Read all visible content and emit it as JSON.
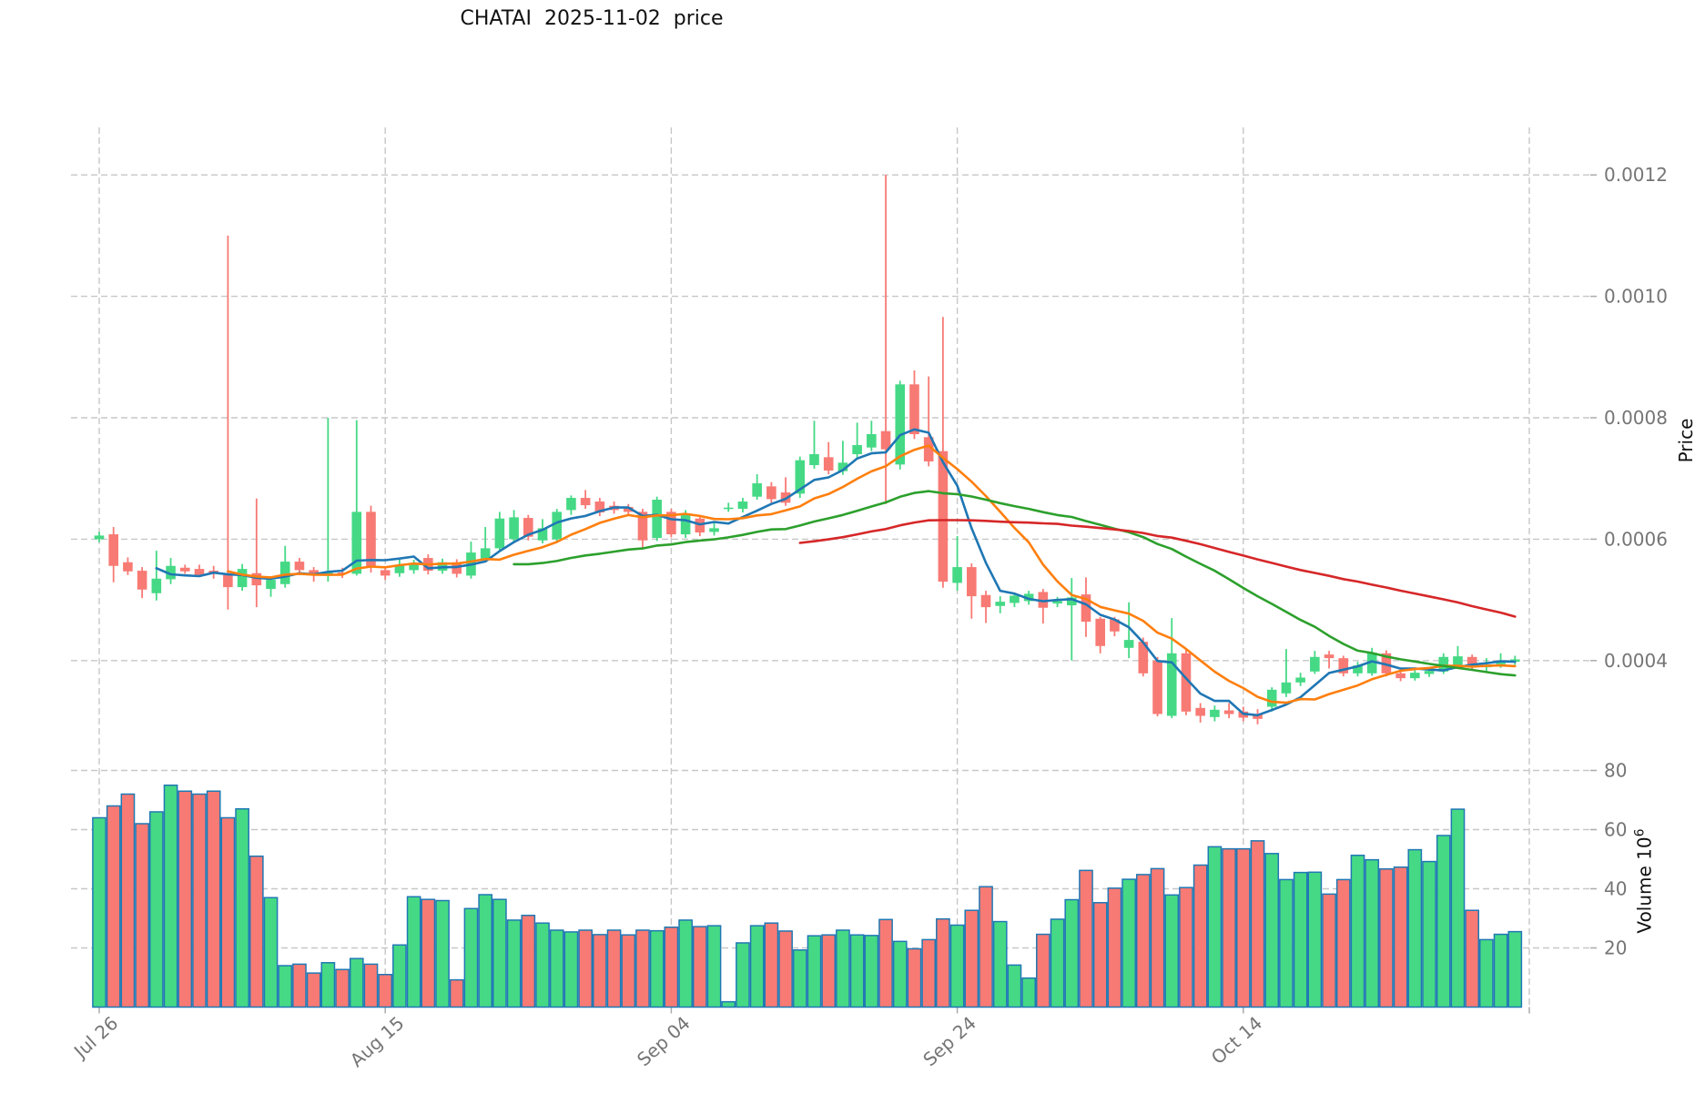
{
  "title": "CHATAI  2025-11-02  price",
  "price_axis": {
    "label": "Price",
    "ticks": [
      "0.0012",
      "0.0010",
      "0.0008",
      "0.0006",
      "0.0004"
    ],
    "tick_values": [
      0.0012,
      0.001,
      0.0008,
      0.0006,
      0.0004
    ]
  },
  "volume_axis": {
    "label": "Volume  10",
    "exponent": "6",
    "ticks": [
      "80",
      "60",
      "40",
      "20"
    ],
    "tick_values": [
      80,
      60,
      40,
      20
    ]
  },
  "x_axis": {
    "tick_labels": [
      "Jul 26",
      "Aug 15",
      "Sep 04",
      "Sep 24",
      "Oct 14"
    ],
    "tick_indices": [
      0,
      20,
      40,
      60,
      80
    ],
    "unlabeled_gridline_index": 100
  },
  "chart_data": {
    "type": "candlestick+volume",
    "title": "CHATAI  2025-11-02  price",
    "xlabel": "",
    "ylabel_price": "Price",
    "ylabel_volume": "Volume 10^6",
    "price_ylim": [
      0.00028,
      0.00128
    ],
    "volume_ylim": [
      0,
      90
    ],
    "grid": true,
    "x_tick_labels": [
      "Jul 26",
      "Aug 15",
      "Sep 04",
      "Sep 24",
      "Oct 14"
    ],
    "x_tick_indices": [
      0,
      20,
      40,
      60,
      80
    ],
    "moving_averages": {
      "windows": [
        5,
        10,
        30,
        50
      ],
      "colors": [
        "#1f77b4",
        "#ff7f0e",
        "#2ca02c",
        "#d62728"
      ]
    },
    "colors": {
      "up": "#45d985",
      "down": "#f87a74",
      "volume_edge": "#2078b4",
      "grid": "#c7c7c7",
      "tick_text": "#757575"
    },
    "columns": [
      "open",
      "high",
      "low",
      "close",
      "volume_millions"
    ],
    "candles": [
      [
        0.0006,
        0.000612,
        0.000595,
        0.000606,
        64
      ],
      [
        0.000608,
        0.00062,
        0.000529,
        0.000556,
        68
      ],
      [
        0.000562,
        0.00057,
        0.000541,
        0.000547,
        72
      ],
      [
        0.000548,
        0.000554,
        0.000503,
        0.000517,
        62
      ],
      [
        0.000511,
        0.000581,
        0.000499,
        0.000535,
        66
      ],
      [
        0.000534,
        0.000569,
        0.000526,
        0.000556,
        75
      ],
      [
        0.000553,
        0.000558,
        0.000543,
        0.000547,
        73
      ],
      [
        0.000551,
        0.000558,
        0.000538,
        0.000541,
        72
      ],
      [
        0.000548,
        0.000556,
        0.000535,
        0.000545,
        73
      ],
      [
        0.000541,
        0.0011,
        0.000484,
        0.000521,
        64
      ],
      [
        0.000521,
        0.000559,
        0.000515,
        0.000551,
        67
      ],
      [
        0.000544,
        0.000667,
        0.000488,
        0.000524,
        51
      ],
      [
        0.000518,
        0.000538,
        0.000505,
        0.000533,
        37
      ],
      [
        0.000526,
        0.000589,
        0.00052,
        0.000563,
        14
      ],
      [
        0.000563,
        0.000569,
        0.000541,
        0.000549,
        14.5
      ],
      [
        0.000549,
        0.000554,
        0.00053,
        0.000541,
        11.5
      ],
      [
        0.000543,
        0.0008,
        0.00053,
        0.000545,
        15
      ],
      [
        0.000545,
        0.000553,
        0.000536,
        0.000543,
        12.7
      ],
      [
        0.000543,
        0.000796,
        0.00054,
        0.000645,
        16.4
      ],
      [
        0.000645,
        0.000655,
        0.000545,
        0.000554,
        14.5
      ],
      [
        0.000549,
        0.000554,
        0.000533,
        0.00054,
        11
      ],
      [
        0.000544,
        0.000567,
        0.000538,
        0.000558,
        21
      ],
      [
        0.000549,
        0.000566,
        0.000543,
        0.00056,
        37.3
      ],
      [
        0.000569,
        0.000575,
        0.000542,
        0.000548,
        36.4
      ],
      [
        0.000548,
        0.000568,
        0.000543,
        0.000562,
        36
      ],
      [
        0.000562,
        0.000567,
        0.000537,
        0.000543,
        9.2
      ],
      [
        0.00054,
        0.000596,
        0.000535,
        0.000578,
        33.3
      ],
      [
        0.000568,
        0.00062,
        0.000562,
        0.000585,
        38
      ],
      [
        0.000585,
        0.000645,
        0.00058,
        0.000634,
        36.4
      ],
      [
        0.0006,
        0.000648,
        0.000594,
        0.000636,
        29.4
      ],
      [
        0.000635,
        0.00064,
        0.000598,
        0.000604,
        31
      ],
      [
        0.000598,
        0.000633,
        0.000593,
        0.000618,
        28.4
      ],
      [
        0.0006,
        0.00065,
        0.000595,
        0.000645,
        26
      ],
      [
        0.000648,
        0.000672,
        0.00064,
        0.000668,
        25.4
      ],
      [
        0.000668,
        0.000681,
        0.00065,
        0.000656,
        26
      ],
      [
        0.000662,
        0.000668,
        0.000638,
        0.000644,
        24.5
      ],
      [
        0.000655,
        0.000662,
        0.000642,
        0.000648,
        26
      ],
      [
        0.000653,
        0.000658,
        0.00064,
        0.000645,
        24.4
      ],
      [
        0.000645,
        0.00065,
        0.000585,
        0.000598,
        26
      ],
      [
        0.000602,
        0.00067,
        0.000597,
        0.000665,
        25.8
      ],
      [
        0.000645,
        0.00065,
        0.000603,
        0.000608,
        27
      ],
      [
        0.000608,
        0.000648,
        0.000602,
        0.00064,
        29.4
      ],
      [
        0.000634,
        0.00064,
        0.000605,
        0.000611,
        27.2
      ],
      [
        0.000612,
        0.000628,
        0.000606,
        0.000618,
        27.5
      ],
      [
        0.00065,
        0.00066,
        0.000645,
        0.000652,
        1.8
      ],
      [
        0.00065,
        0.000668,
        0.000644,
        0.000662,
        21.7
      ],
      [
        0.00067,
        0.000707,
        0.000665,
        0.000692,
        27.5
      ],
      [
        0.000687,
        0.000694,
        0.00066,
        0.000666,
        28.4
      ],
      [
        0.000677,
        0.000702,
        0.000655,
        0.00066,
        25.7
      ],
      [
        0.000675,
        0.000736,
        0.000668,
        0.00073,
        19.3
      ],
      [
        0.000722,
        0.000795,
        0.000716,
        0.00074,
        24.1
      ],
      [
        0.000735,
        0.00076,
        0.000707,
        0.000713,
        24.4
      ],
      [
        0.000712,
        0.000762,
        0.000706,
        0.000726,
        26
      ],
      [
        0.00074,
        0.000792,
        0.000734,
        0.000755,
        24.4
      ],
      [
        0.000751,
        0.000795,
        0.000745,
        0.000773,
        24.2
      ],
      [
        0.000778,
        0.0012,
        0.000658,
        0.000748,
        29.6
      ],
      [
        0.000723,
        0.000861,
        0.000715,
        0.000855,
        22.2
      ],
      [
        0.000855,
        0.000878,
        0.000765,
        0.000773,
        19.7
      ],
      [
        0.000768,
        0.000868,
        0.00072,
        0.000728,
        22.8
      ],
      [
        0.000745,
        0.000966,
        0.00052,
        0.00053,
        29.8
      ],
      [
        0.000528,
        0.000605,
        0.000515,
        0.000554,
        27.7
      ],
      [
        0.000554,
        0.00056,
        0.000469,
        0.000506,
        32.7
      ],
      [
        0.000508,
        0.000515,
        0.000462,
        0.000488,
        40.7
      ],
      [
        0.00049,
        0.000506,
        0.000478,
        0.000497,
        28.9
      ],
      [
        0.000495,
        0.000512,
        0.000488,
        0.000507,
        14.2
      ],
      [
        0.000498,
        0.000515,
        0.000492,
        0.00051,
        9.8
      ],
      [
        0.000513,
        0.000518,
        0.000461,
        0.000487,
        24.6
      ],
      [
        0.000494,
        0.000505,
        0.000488,
        0.000498,
        29.7
      ],
      [
        0.000491,
        0.000536,
        0.0004,
        0.000504,
        36.3
      ],
      [
        0.000509,
        0.000537,
        0.000439,
        0.000464,
        46.2
      ],
      [
        0.000469,
        0.000472,
        0.000412,
        0.000424,
        35.3
      ],
      [
        0.000468,
        0.000472,
        0.00044,
        0.000448,
        40.2
      ],
      [
        0.000421,
        0.000496,
        0.000404,
        0.000434,
        43.2
      ],
      [
        0.000431,
        0.000438,
        0.000374,
        0.000379,
        44.8
      ],
      [
        0.0004,
        0.000406,
        0.000308,
        0.000312,
        46.8
      ],
      [
        0.000309,
        0.00047,
        0.000305,
        0.000412,
        37.9
      ],
      [
        0.000412,
        0.000418,
        0.00031,
        0.000316,
        40.4
      ],
      [
        0.000322,
        0.00033,
        0.000298,
        0.000309,
        48
      ],
      [
        0.000307,
        0.000326,
        0.0003,
        0.000319,
        54.2
      ],
      [
        0.000318,
        0.00033,
        0.000305,
        0.000312,
        53.5
      ],
      [
        0.000316,
        0.000324,
        0.0003,
        0.000306,
        53.5
      ],
      [
        0.000312,
        0.00032,
        0.000295,
        0.000304,
        56.2
      ],
      [
        0.000324,
        0.000356,
        0.000316,
        0.000352,
        51.9
      ],
      [
        0.000346,
        0.000419,
        0.00034,
        0.000364,
        43.1
      ],
      [
        0.000364,
        0.00038,
        0.000358,
        0.000372,
        45.5
      ],
      [
        0.000382,
        0.000416,
        0.000378,
        0.000406,
        45.6
      ],
      [
        0.00041,
        0.000416,
        0.000387,
        0.000404,
        38.2
      ],
      [
        0.000404,
        0.000408,
        0.000374,
        0.000379,
        43.1
      ],
      [
        0.000379,
        0.000398,
        0.000374,
        0.000392,
        51.3
      ],
      [
        0.000379,
        0.000421,
        0.000375,
        0.000413,
        49.8
      ],
      [
        0.000412,
        0.000417,
        0.000374,
        0.000379,
        46.7
      ],
      [
        0.000379,
        0.000384,
        0.000366,
        0.000371,
        47.3
      ],
      [
        0.000371,
        0.000386,
        0.000367,
        0.00038,
        53.2
      ],
      [
        0.000378,
        0.000389,
        0.000373,
        0.000383,
        49.2
      ],
      [
        0.000382,
        0.000412,
        0.000378,
        0.000406,
        58
      ],
      [
        0.000391,
        0.000424,
        0.000387,
        0.000407,
        66.9
      ],
      [
        0.000406,
        0.00041,
        0.000385,
        0.00039,
        32.7
      ],
      [
        0.000389,
        0.000404,
        0.000381,
        0.000392,
        22.8
      ],
      [
        0.000394,
        0.000412,
        0.000388,
        0.000399,
        24.6
      ],
      [
        0.000398,
        0.000408,
        0.000393,
        0.000402,
        25.5
      ]
    ]
  }
}
